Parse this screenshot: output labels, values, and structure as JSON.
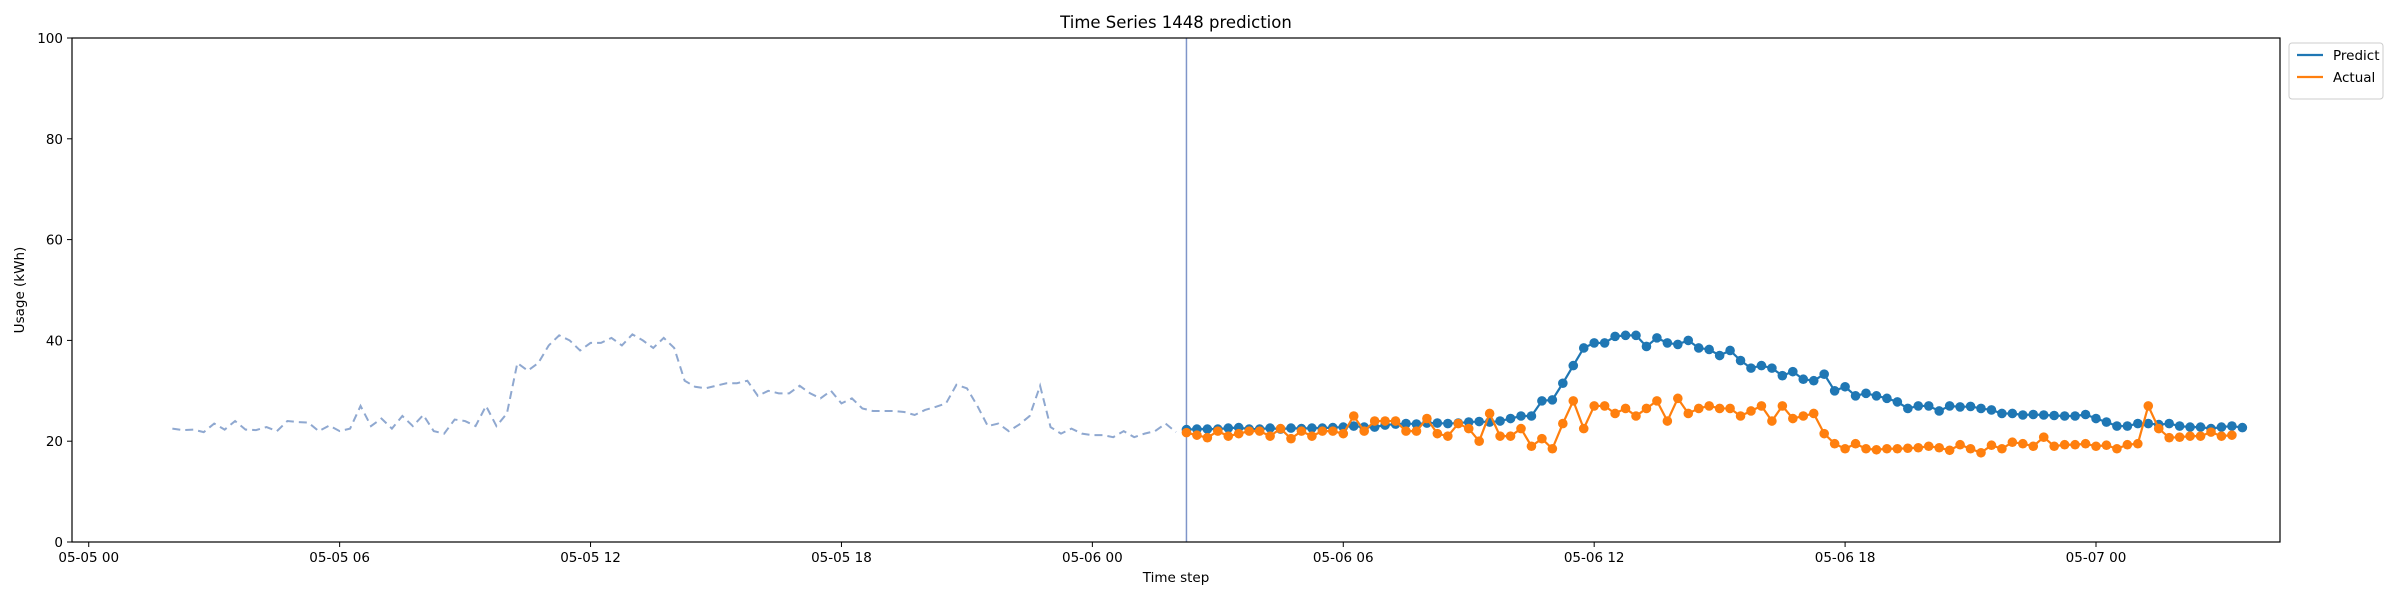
{
  "chart_data": {
    "type": "line",
    "title": "Time Series 1448 prediction",
    "xlabel": "Time step",
    "ylabel": "Usage (kWh)",
    "ylim": [
      0,
      100
    ],
    "yticks": [
      0,
      20,
      40,
      60,
      80,
      100
    ],
    "x_unit": "hours since 05-05 00:00",
    "xlim": [
      -0.4,
      52.4
    ],
    "xticks": [
      {
        "x": 0,
        "label": "05-05 00"
      },
      {
        "x": 6,
        "label": "05-05 06"
      },
      {
        "x": 12,
        "label": "05-05 12"
      },
      {
        "x": 18,
        "label": "05-05 18"
      },
      {
        "x": 24,
        "label": "05-06 00"
      },
      {
        "x": 30,
        "label": "05-06 06"
      },
      {
        "x": 36,
        "label": "05-06 12"
      },
      {
        "x": 42,
        "label": "05-06 18"
      },
      {
        "x": 48,
        "label": "05-07 00"
      }
    ],
    "grid": false,
    "legend_position": "upper right, outside plot",
    "forecast_start_x": 26.25,
    "series": [
      {
        "name": "",
        "style": "dashed",
        "color": "#8fa8d0",
        "x_start": 2.0,
        "x_step": 0.25,
        "values": [
          22.5,
          22.2,
          22.3,
          21.8,
          23.5,
          22.3,
          24.0,
          22.3,
          22.2,
          22.8,
          22.0,
          24.0,
          23.8,
          23.7,
          22.0,
          23.1,
          22.0,
          22.5,
          27.0,
          23.0,
          24.5,
          22.5,
          25.0,
          23.0,
          25.2,
          22.0,
          21.5,
          24.3,
          24.0,
          23.0,
          27.0,
          23.0,
          25.5,
          35.5,
          34.0,
          35.5,
          39.0,
          41.0,
          40.0,
          38.0,
          39.5,
          39.5,
          40.5,
          39.0,
          41.2,
          40.0,
          38.5,
          40.5,
          38.5,
          32.0,
          30.8,
          30.5,
          31.0,
          31.5,
          31.5,
          32.0,
          29.0,
          30.0,
          29.5,
          29.5,
          31.0,
          29.5,
          28.5,
          30.0,
          27.5,
          28.5,
          26.5,
          26.0,
          26.0,
          26.0,
          25.8,
          25.2,
          26.2,
          26.8,
          27.5,
          31.2,
          30.5,
          27.0,
          23.0,
          23.5,
          22.0,
          23.3,
          25.0,
          31.0,
          22.8,
          21.5,
          22.5,
          21.5,
          21.2,
          21.2,
          20.8,
          22.0,
          20.8,
          21.5,
          22.0,
          23.5,
          21.8
        ]
      },
      {
        "name": "Predict",
        "style": "solid-markers",
        "color": "#1f77b4",
        "x_start": 26.25,
        "x_step": 0.25,
        "values": [
          22.3,
          22.4,
          22.4,
          22.4,
          22.6,
          22.7,
          22.4,
          22.4,
          22.6,
          22.4,
          22.6,
          22.5,
          22.6,
          22.6,
          22.7,
          22.8,
          23.0,
          22.8,
          22.8,
          23.2,
          23.4,
          23.5,
          23.4,
          23.6,
          23.6,
          23.5,
          23.6,
          23.8,
          23.9,
          23.8,
          24.0,
          24.5,
          25.0,
          25.0,
          28.0,
          28.2,
          31.5,
          35.0,
          38.5,
          39.5,
          39.5,
          40.8,
          41.0,
          41.0,
          38.8,
          40.5,
          39.5,
          39.2,
          40.0,
          38.5,
          38.2,
          37.0,
          38.0,
          36.0,
          34.5,
          35.0,
          34.5,
          33.0,
          33.8,
          32.3,
          32.0,
          33.3,
          30.0,
          30.8,
          29.0,
          29.5,
          29.0,
          28.5,
          27.8,
          26.5,
          27.0,
          27.0,
          26.0,
          27.0,
          26.8,
          26.9,
          26.5,
          26.2,
          25.5,
          25.5,
          25.2,
          25.3,
          25.2,
          25.1,
          25.0,
          25.0,
          25.3,
          24.5,
          23.8,
          23.0,
          23.0,
          23.5,
          23.5,
          23.3,
          23.5,
          23.0,
          22.8,
          22.8,
          22.5,
          22.8,
          23.0,
          22.7
        ]
      },
      {
        "name": "Actual",
        "style": "solid-markers",
        "color": "#ff7f0e",
        "x_start": 26.25,
        "x_step": 0.25,
        "values": [
          21.7,
          21.2,
          20.7,
          22.0,
          21.0,
          21.5,
          22.0,
          22.0,
          21.0,
          22.5,
          20.5,
          22.0,
          21.0,
          22.0,
          22.0,
          21.5,
          25.0,
          22.0,
          24.0,
          24.0,
          24.0,
          22.0,
          22.0,
          24.5,
          21.5,
          21.0,
          23.5,
          22.5,
          20.0,
          25.5,
          21.0,
          21.0,
          22.5,
          19.0,
          20.5,
          18.5,
          23.5,
          28.0,
          22.5,
          27.0,
          27.0,
          25.5,
          26.5,
          25.0,
          26.5,
          28.0,
          24.0,
          28.5,
          25.5,
          26.5,
          27.0,
          26.5,
          26.5,
          25.0,
          26.0,
          27.0,
          24.0,
          27.0,
          24.5,
          25.0,
          25.5,
          21.5,
          19.5,
          18.5,
          19.5,
          18.5,
          18.3,
          18.5,
          18.5,
          18.6,
          18.7,
          19.0,
          18.7,
          18.2,
          19.3,
          18.5,
          17.7,
          19.2,
          18.5,
          19.8,
          19.5,
          19.0,
          20.8,
          19.0,
          19.3,
          19.3,
          19.5,
          19.0,
          19.2,
          18.5,
          19.3,
          19.5,
          27.0,
          22.5,
          20.7,
          20.8,
          21.0,
          21.0,
          21.8,
          21.0,
          21.2
        ]
      }
    ]
  }
}
